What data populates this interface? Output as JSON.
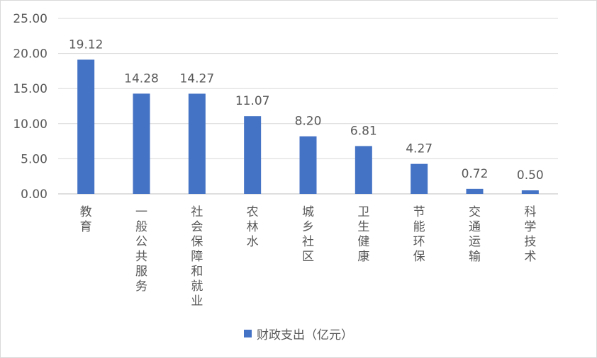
{
  "chart_data": {
    "type": "bar",
    "categories": [
      "教育",
      "一般公共服务",
      "社会保障和就业",
      "农林水",
      "城乡社区",
      "卫生健康",
      "节能环保",
      "交通运输",
      "科学技术"
    ],
    "series": [
      {
        "name": "财政支出（亿元）",
        "values": [
          19.12,
          14.28,
          14.27,
          11.07,
          8.2,
          6.81,
          4.27,
          0.72,
          0.5
        ],
        "value_labels": [
          "19.12",
          "14.28",
          "14.27",
          "11.07",
          "8.20",
          "6.81",
          "4.27",
          "0.72",
          "0.50"
        ],
        "color": "#4472c4"
      }
    ],
    "ylim": [
      0,
      25
    ],
    "yticks": [
      "0.00",
      "5.00",
      "10.00",
      "15.00",
      "20.00",
      "25.00"
    ],
    "ytick_values": [
      0,
      5,
      10,
      15,
      20,
      25
    ],
    "grid": true,
    "legend_position": "bottom",
    "category_label_orientation": "vertical"
  },
  "colors": {
    "bar": "#4472c4",
    "grid": "#d9d9d9",
    "text": "#595959",
    "axis": "#bfbfbf"
  }
}
